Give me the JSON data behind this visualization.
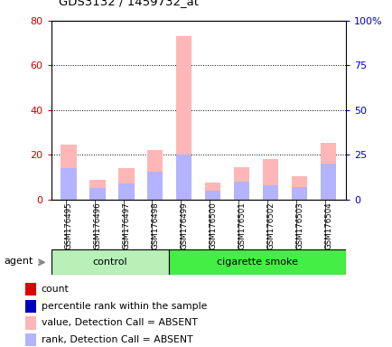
{
  "title": "GDS3132 / 1459732_at",
  "samples": [
    "GSM176495",
    "GSM176496",
    "GSM176497",
    "GSM176498",
    "GSM176499",
    "GSM176500",
    "GSM176501",
    "GSM176502",
    "GSM176503",
    "GSM176504"
  ],
  "value_absent": [
    24.5,
    9.0,
    14.0,
    22.0,
    73.0,
    7.5,
    14.5,
    18.0,
    10.5,
    25.5
  ],
  "rank_absent": [
    14.0,
    5.0,
    7.0,
    12.5,
    20.0,
    4.0,
    8.0,
    6.5,
    5.5,
    16.0
  ],
  "ylim_left": [
    0,
    80
  ],
  "ylim_right": [
    0,
    100
  ],
  "yticks_left": [
    0,
    20,
    40,
    60,
    80
  ],
  "yticks_right": [
    0,
    25,
    50,
    75,
    100
  ],
  "color_value_absent": "#ffb6b6",
  "color_rank_absent": "#b3b3ff",
  "color_count": "#dd0000",
  "color_percentile": "#0000bb",
  "control_bg": "#b8f0b8",
  "smoke_bg": "#44ee44",
  "num_control": 4,
  "num_smoke": 6,
  "legend_items": [
    {
      "label": "count",
      "color": "#dd0000"
    },
    {
      "label": "percentile rank within the sample",
      "color": "#0000bb"
    },
    {
      "label": "value, Detection Call = ABSENT",
      "color": "#ffb6b6"
    },
    {
      "label": "rank, Detection Call = ABSENT",
      "color": "#b3b3ff"
    }
  ]
}
